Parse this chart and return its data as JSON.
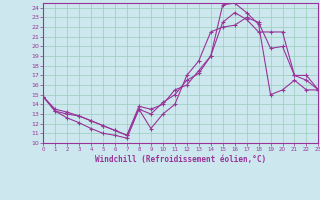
{
  "xlabel": "Windchill (Refroidissement éolien,°C)",
  "xlim": [
    0,
    23
  ],
  "ylim": [
    10,
    24.5
  ],
  "yticks": [
    10,
    11,
    12,
    13,
    14,
    15,
    16,
    17,
    18,
    19,
    20,
    21,
    22,
    23,
    24
  ],
  "xticks": [
    0,
    1,
    2,
    3,
    4,
    5,
    6,
    7,
    8,
    9,
    10,
    11,
    12,
    13,
    14,
    15,
    16,
    17,
    18,
    19,
    20,
    21,
    22,
    23
  ],
  "bg_color": "#cce8ee",
  "line_color": "#993399",
  "grid_color": "#99ccbb",
  "line1_x": [
    0,
    1,
    2,
    3,
    4,
    5,
    6,
    7,
    8,
    9,
    10,
    11,
    12,
    13,
    14,
    15,
    16,
    17,
    18,
    19,
    20,
    21,
    22,
    23
  ],
  "line1_y": [
    14.8,
    13.3,
    12.6,
    12.1,
    11.5,
    11.0,
    10.8,
    10.5,
    13.5,
    11.5,
    13.0,
    14.0,
    17.0,
    18.5,
    21.5,
    22.0,
    22.2,
    23.0,
    22.5,
    19.8,
    20.0,
    17.0,
    17.0,
    15.5
  ],
  "line2_x": [
    0,
    1,
    2,
    3,
    4,
    5,
    6,
    7,
    8,
    9,
    10,
    11,
    12,
    13,
    14,
    15,
    16,
    17,
    18,
    19,
    20,
    21,
    22,
    23
  ],
  "line2_y": [
    14.8,
    13.3,
    13.0,
    12.8,
    12.3,
    11.8,
    11.3,
    10.8,
    13.8,
    13.5,
    14.0,
    15.5,
    16.0,
    17.5,
    19.0,
    24.3,
    24.5,
    23.5,
    22.3,
    15.0,
    15.5,
    16.5,
    15.5,
    15.5
  ],
  "line3_x": [
    0,
    1,
    2,
    3,
    4,
    5,
    6,
    7,
    8,
    9,
    10,
    11,
    12,
    13,
    14,
    15,
    16,
    17,
    18,
    19,
    20,
    21,
    22,
    23
  ],
  "line3_y": [
    14.8,
    13.5,
    13.2,
    12.8,
    12.3,
    11.8,
    11.3,
    10.8,
    13.5,
    13.0,
    14.2,
    15.0,
    16.5,
    17.2,
    19.0,
    22.5,
    23.5,
    22.8,
    21.5,
    21.5,
    21.5,
    17.0,
    16.5,
    15.5
  ]
}
